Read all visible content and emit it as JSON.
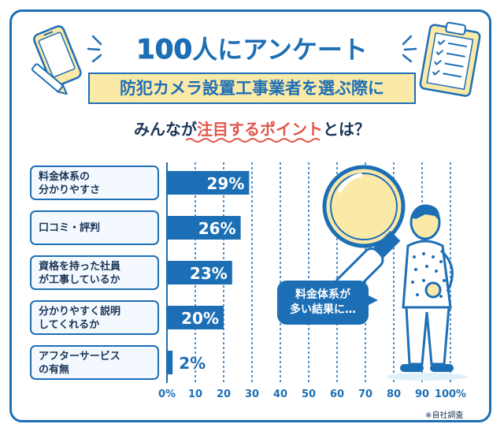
{
  "header": {
    "headline_number": "100",
    "headline_text": "人にアンケート",
    "ribbon": "防犯カメラ設置工事業者を選ぶ際に",
    "subhead_pre": "みんなが",
    "subhead_highlight": "注目するポイント",
    "subhead_post": "とは？"
  },
  "speech_bubble": "料金体系が\n多い結果に…",
  "credit": "※自社調査",
  "chart_data": {
    "type": "bar",
    "orientation": "horizontal",
    "categories": [
      "料金体系の\n分かりやすさ",
      "口コミ・評判",
      "資格を持った社員\nが工事しているか",
      "分かりやすく説明\nしてくれるか",
      "アフターサービス\nの有無"
    ],
    "values": [
      29,
      26,
      23,
      20,
      2
    ],
    "value_labels": [
      "29%",
      "26%",
      "23%",
      "20%",
      "2%"
    ],
    "xlim": [
      0,
      100
    ],
    "ticks": [
      "0%",
      "10",
      "20",
      "30",
      "40",
      "50",
      "60",
      "70",
      "80",
      "90",
      "100%"
    ],
    "grid": true,
    "bar_color": "#1d6fb5",
    "grid_color": "#1d6fb5"
  },
  "colors": {
    "primary": "#1d6fb5",
    "highlight": "#e2574c",
    "ribbon_fill": "#fbe9a8",
    "band": "#dff0fb",
    "text_dark": "#1a3556"
  },
  "illustrations": [
    "smartphone-pencil-icon",
    "clipboard-checklist-icon",
    "magnifying-glass-icon",
    "person-illustration"
  ]
}
